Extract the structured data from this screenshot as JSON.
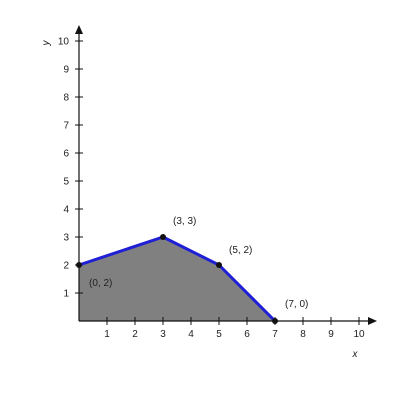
{
  "chart_data": {
    "type": "area",
    "title": "",
    "xlabel": "x",
    "ylabel": "y",
    "xlim": [
      0,
      10
    ],
    "ylim": [
      0,
      10
    ],
    "x_ticks": [
      1,
      2,
      3,
      4,
      5,
      6,
      7,
      8,
      9,
      10
    ],
    "y_ticks": [
      1,
      2,
      3,
      4,
      5,
      6,
      7,
      8,
      9,
      10
    ],
    "grid": false,
    "series": [
      {
        "points": [
          {
            "x": 0,
            "y": 2,
            "label": "(0, 2)"
          },
          {
            "x": 3,
            "y": 3,
            "label": "(3, 3)"
          },
          {
            "x": 5,
            "y": 2,
            "label": "(5, 2)"
          },
          {
            "x": 7,
            "y": 0,
            "label": "(7, 0)"
          }
        ]
      }
    ],
    "colors": {
      "fill": "#808080",
      "line": "#1f1fd6",
      "point": "#111111",
      "axis": "#111111"
    }
  }
}
